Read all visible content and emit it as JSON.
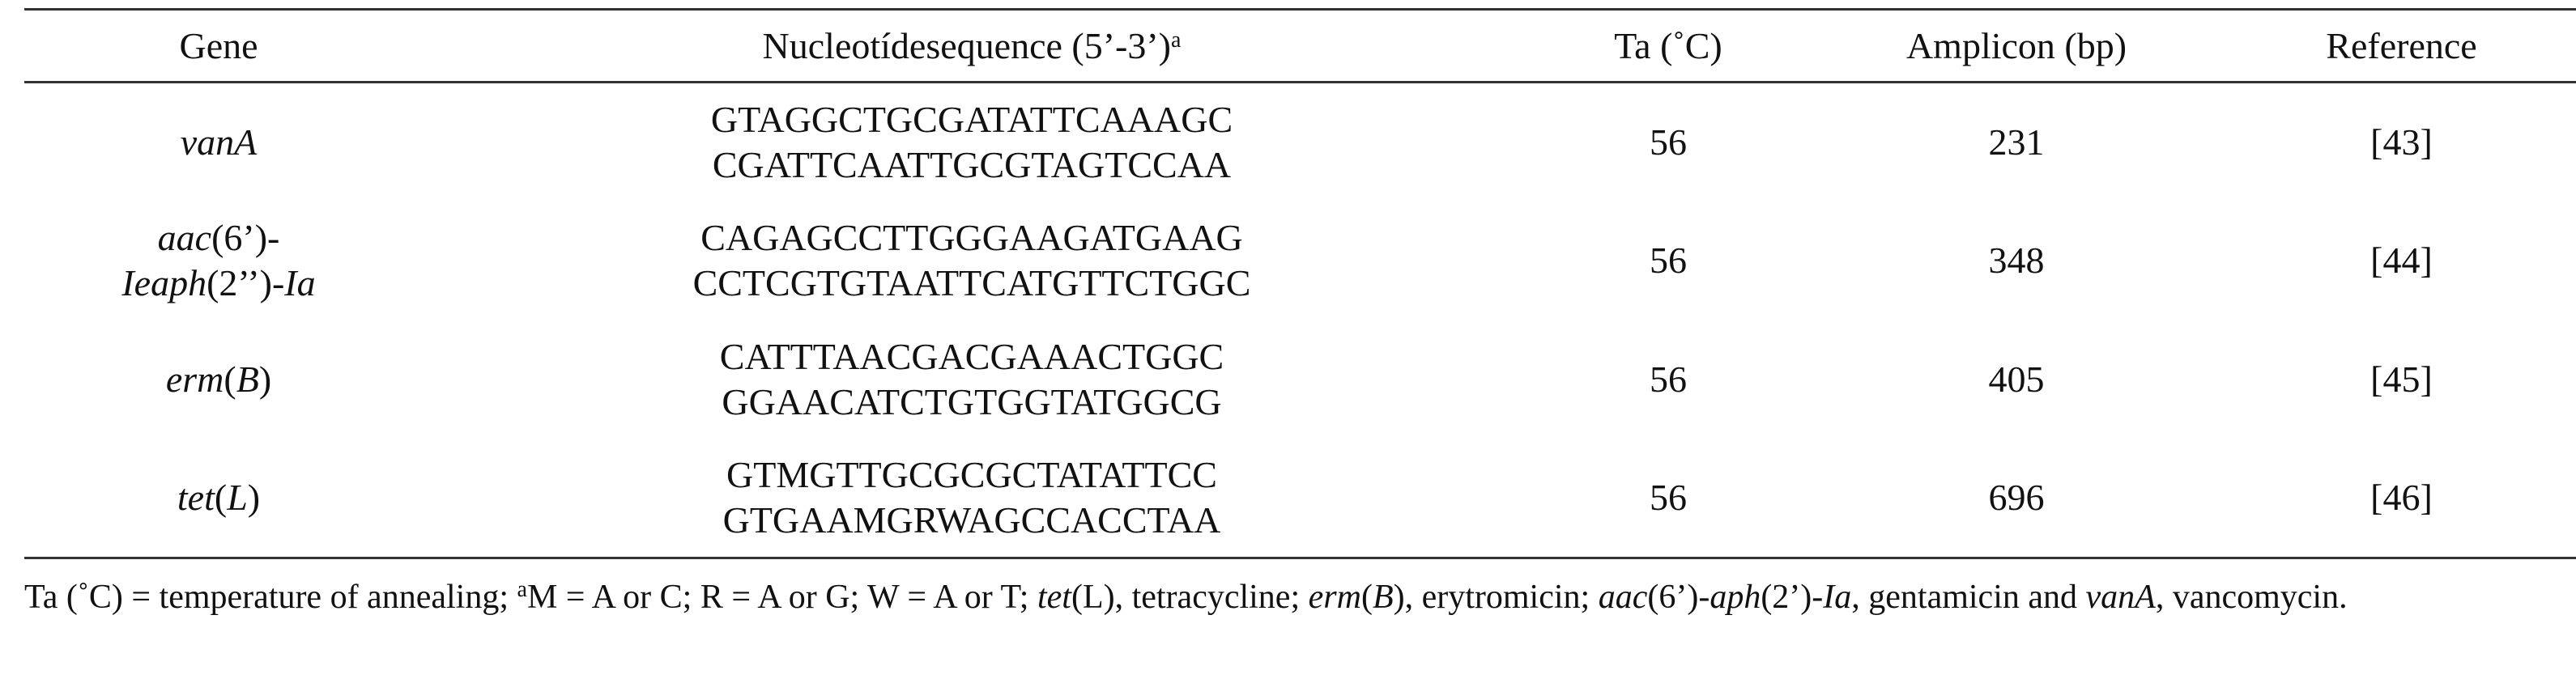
{
  "table": {
    "header": [
      [
        {
          "text": "Gene"
        }
      ],
      [
        {
          "text": "Nucleotídesequence (5’-3’)"
        },
        {
          "text": "a",
          "sup": true
        }
      ],
      [
        {
          "text": "Ta (˚C)"
        }
      ],
      [
        {
          "text": "Amplicon (bp)"
        }
      ],
      [
        {
          "text": "Reference"
        }
      ]
    ],
    "rows": [
      {
        "gene": [
          [
            {
              "text": "vanA",
              "italic": true
            }
          ]
        ],
        "sequences": [
          "GTAGGCTGCGATATTCAAAGC",
          "CGATTCAATTGCGTAGTCCAA"
        ],
        "ta": 56,
        "amplicon": 231,
        "reference": "[43]"
      },
      {
        "gene": [
          [
            {
              "text": "aac",
              "italic": true
            },
            {
              "text": "(6’)-"
            }
          ],
          [
            {
              "text": "Ieaph",
              "italic": true
            },
            {
              "text": "(2’’)-"
            },
            {
              "text": "Ia",
              "italic": true
            }
          ]
        ],
        "sequences": [
          "CAGAGCCTTGGGAAGATGAAG",
          "CCTCGTGTAATTCATGTTCTGGC"
        ],
        "ta": 56,
        "amplicon": 348,
        "reference": "[44]"
      },
      {
        "gene": [
          [
            {
              "text": "erm",
              "italic": true
            },
            {
              "text": "("
            },
            {
              "text": "B",
              "italic": true
            },
            {
              "text": ")"
            }
          ]
        ],
        "sequences": [
          "CATTTAACGACGAAACTGGC",
          "GGAACATCTGTGGTATGGCG"
        ],
        "ta": 56,
        "amplicon": 405,
        "reference": "[45]"
      },
      {
        "gene": [
          [
            {
              "text": "tet",
              "italic": true
            },
            {
              "text": "("
            },
            {
              "text": "L",
              "italic": true
            },
            {
              "text": ")"
            }
          ]
        ],
        "sequences": [
          "GTMGTTGCGCGCTATATTCC",
          "GTGAAMGRWAGCCACCTAA"
        ],
        "ta": 56,
        "amplicon": 696,
        "reference": "[46]"
      }
    ]
  },
  "footnote": [
    {
      "text": "Ta (˚C) = temperature of annealing; "
    },
    {
      "text": "a",
      "sup": true
    },
    {
      "text": "M = A or C; R = A or G; W = A or T; "
    },
    {
      "text": "tet",
      "italic": true
    },
    {
      "text": "(L), tetracycline; "
    },
    {
      "text": "erm",
      "italic": true
    },
    {
      "text": "("
    },
    {
      "text": "B",
      "italic": true
    },
    {
      "text": "), erytromicin; "
    },
    {
      "text": "aac",
      "italic": true
    },
    {
      "text": "(6’)-"
    },
    {
      "text": "aph",
      "italic": true
    },
    {
      "text": "(2’)-"
    },
    {
      "text": "Ia",
      "italic": true
    },
    {
      "text": ", gentamicin and "
    },
    {
      "text": "vanA",
      "italic": true
    },
    {
      "text": ", vancomycin."
    }
  ]
}
